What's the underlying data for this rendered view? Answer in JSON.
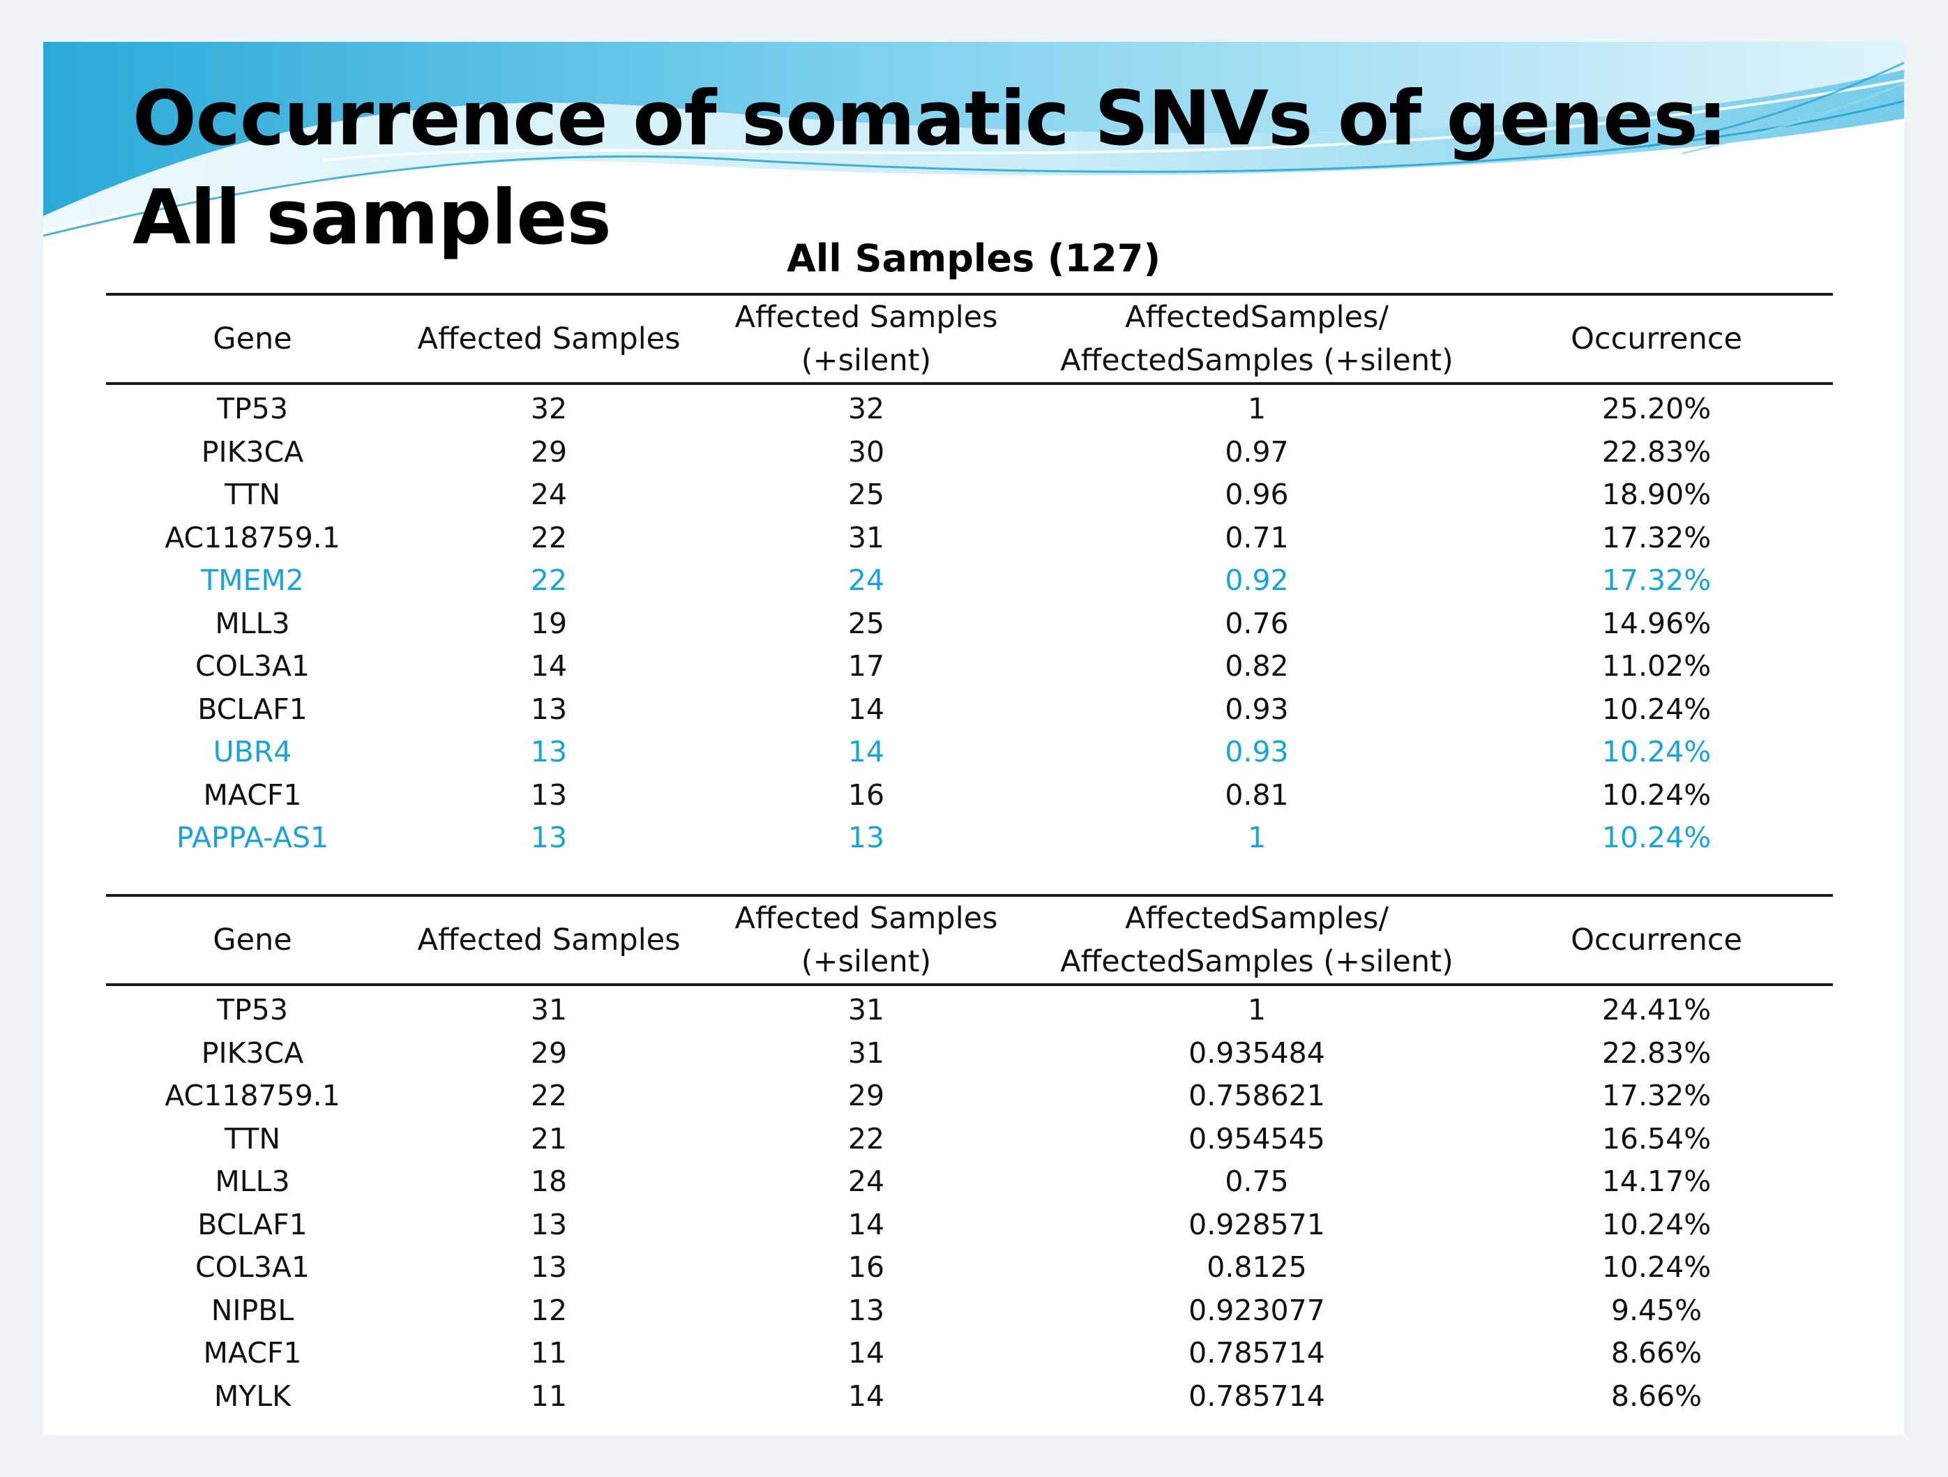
{
  "title": "Occurrence of somatic SNVs of genes: All samples",
  "subtitle": "All Samples (127)",
  "colors": {
    "highlight": "#1aa3d6",
    "wave_light": "#bfe8f5",
    "wave_mid": "#5cc3e6",
    "wave_dark": "#1e9fd0"
  },
  "headers": {
    "gene": "Gene",
    "affected": "Affected Samples",
    "affected_silent_l1": "Affected Samples",
    "affected_silent_l2": "(+silent)",
    "ratio_l1": "AffectedSamples/",
    "ratio_l2": "AffectedSamples (+silent)",
    "occurrence": "Occurrence"
  },
  "table1": {
    "rows": [
      {
        "gene": "TP53",
        "affected": "32",
        "silent": "32",
        "ratio": "1",
        "occurrence": "25.20%",
        "highlight": false
      },
      {
        "gene": "PIK3CA",
        "affected": "29",
        "silent": "30",
        "ratio": "0.97",
        "occurrence": "22.83%",
        "highlight": false
      },
      {
        "gene": "TTN",
        "affected": "24",
        "silent": "25",
        "ratio": "0.96",
        "occurrence": "18.90%",
        "highlight": false
      },
      {
        "gene": "AC118759.1",
        "affected": "22",
        "silent": "31",
        "ratio": "0.71",
        "occurrence": "17.32%",
        "highlight": false
      },
      {
        "gene": "TMEM2",
        "affected": "22",
        "silent": "24",
        "ratio": "0.92",
        "occurrence": "17.32%",
        "highlight": true
      },
      {
        "gene": "MLL3",
        "affected": "19",
        "silent": "25",
        "ratio": "0.76",
        "occurrence": "14.96%",
        "highlight": false
      },
      {
        "gene": "COL3A1",
        "affected": "14",
        "silent": "17",
        "ratio": "0.82",
        "occurrence": "11.02%",
        "highlight": false
      },
      {
        "gene": "BCLAF1",
        "affected": "13",
        "silent": "14",
        "ratio": "0.93",
        "occurrence": "10.24%",
        "highlight": false
      },
      {
        "gene": "UBR4",
        "affected": "13",
        "silent": "14",
        "ratio": "0.93",
        "occurrence": "10.24%",
        "highlight": true
      },
      {
        "gene": "MACF1",
        "affected": "13",
        "silent": "16",
        "ratio": "0.81",
        "occurrence": "10.24%",
        "highlight": false
      },
      {
        "gene": "PAPPA-AS1",
        "affected": "13",
        "silent": "13",
        "ratio": "1",
        "occurrence": "10.24%",
        "highlight": true
      }
    ]
  },
  "table2": {
    "rows": [
      {
        "gene": "TP53",
        "affected": "31",
        "silent": "31",
        "ratio": "1",
        "occurrence": "24.41%",
        "highlight": false
      },
      {
        "gene": "PIK3CA",
        "affected": "29",
        "silent": "31",
        "ratio": "0.935484",
        "occurrence": "22.83%",
        "highlight": false
      },
      {
        "gene": "AC118759.1",
        "affected": "22",
        "silent": "29",
        "ratio": "0.758621",
        "occurrence": "17.32%",
        "highlight": false
      },
      {
        "gene": "TTN",
        "affected": "21",
        "silent": "22",
        "ratio": "0.954545",
        "occurrence": "16.54%",
        "highlight": false
      },
      {
        "gene": "MLL3",
        "affected": "18",
        "silent": "24",
        "ratio": "0.75",
        "occurrence": "14.17%",
        "highlight": false
      },
      {
        "gene": "BCLAF1",
        "affected": "13",
        "silent": "14",
        "ratio": "0.928571",
        "occurrence": "10.24%",
        "highlight": false
      },
      {
        "gene": "COL3A1",
        "affected": "13",
        "silent": "16",
        "ratio": "0.8125",
        "occurrence": "10.24%",
        "highlight": false
      },
      {
        "gene": "NIPBL",
        "affected": "12",
        "silent": "13",
        "ratio": "0.923077",
        "occurrence": "9.45%",
        "highlight": false
      },
      {
        "gene": "MACF1",
        "affected": "11",
        "silent": "14",
        "ratio": "0.785714",
        "occurrence": "8.66%",
        "highlight": false
      },
      {
        "gene": "MYLK",
        "affected": "11",
        "silent": "14",
        "ratio": "0.785714",
        "occurrence": "8.66%",
        "highlight": false
      }
    ]
  }
}
